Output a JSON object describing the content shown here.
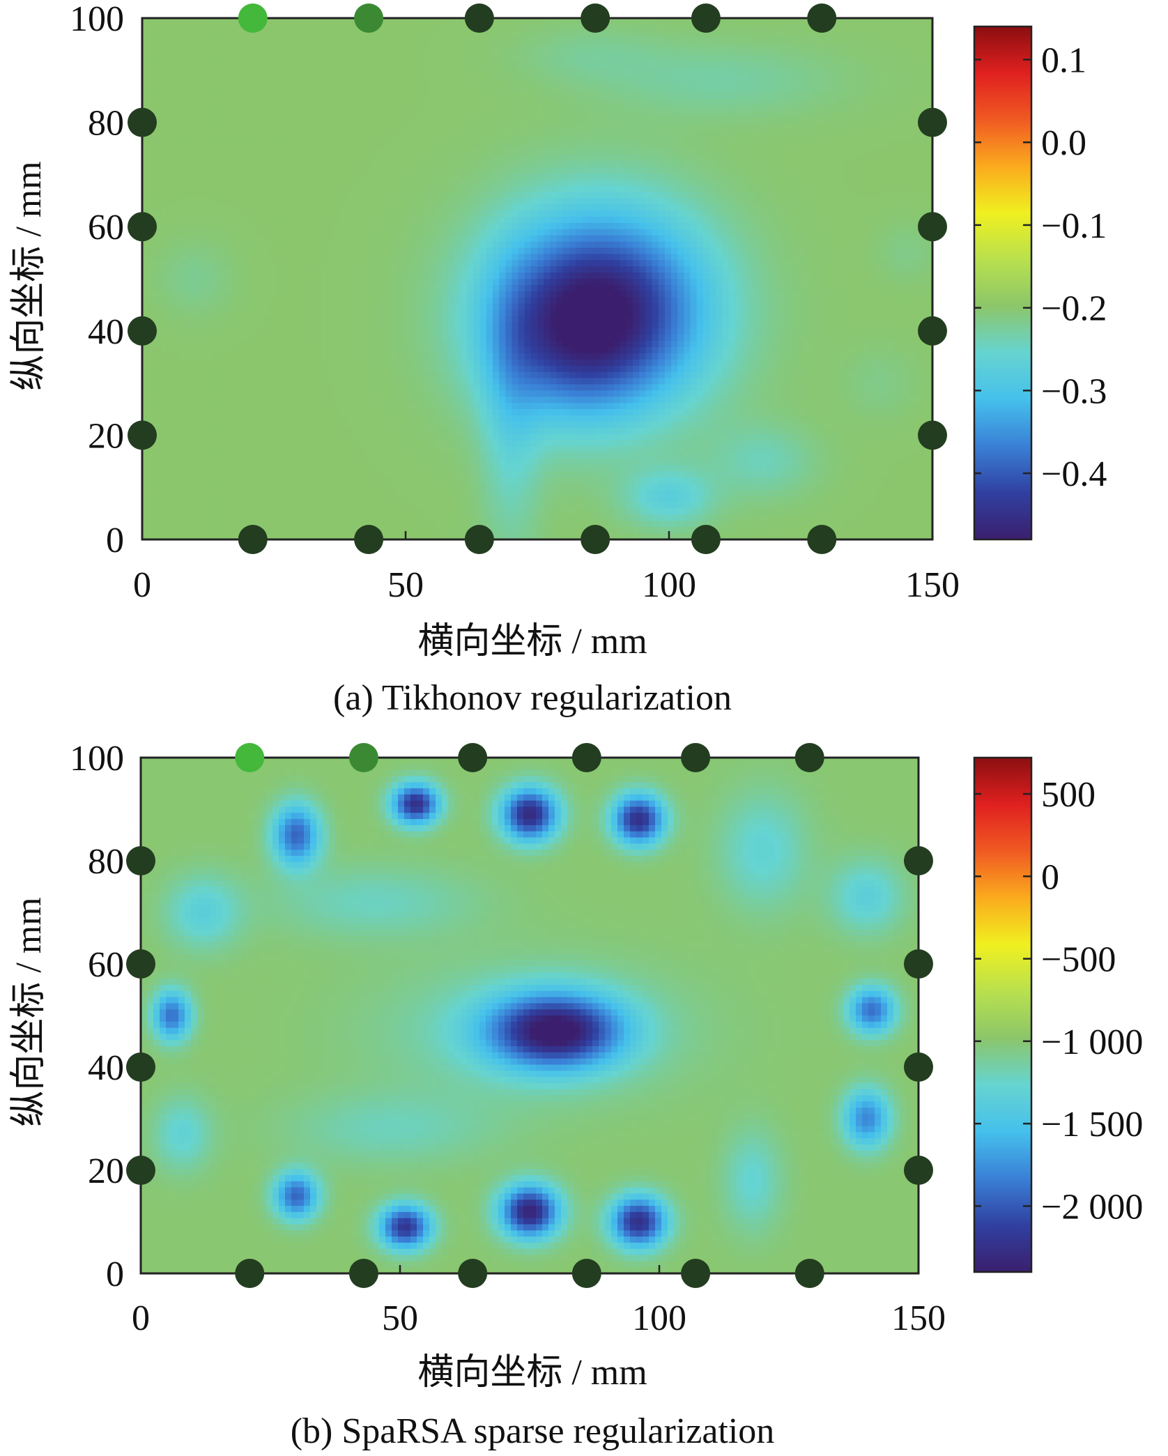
{
  "colormap": [
    "#3b1f6e",
    "#3040a0",
    "#3a80d6",
    "#45c0ec",
    "#66d4d0",
    "#8cc66a",
    "#b8e04e",
    "#f0f020",
    "#fbab1e",
    "#f05a22",
    "#e02020",
    "#8b0e10"
  ],
  "sensor_colors": {
    "default": "#233d20",
    "highlight_1": "#43b83a",
    "highlight_2": "#3b8a33"
  },
  "chart_data": [
    {
      "type": "heatmap",
      "caption": "(a) Tikhonov regularization",
      "xlabel": "横向坐标 / mm",
      "ylabel": "纵向坐标 / mm",
      "xlim": [
        0,
        150
      ],
      "ylim": [
        0,
        100
      ],
      "xticks": [
        0,
        50,
        100,
        150
      ],
      "yticks": [
        0,
        20,
        40,
        60,
        80,
        100
      ],
      "colorbar": {
        "min": -0.48,
        "max": 0.14,
        "ticks": [
          0.1,
          0.0,
          -0.1,
          -0.2,
          -0.3,
          -0.4
        ],
        "labels": [
          "0.1",
          "0.0",
          "−0.1",
          "−0.2",
          "−0.3",
          "−0.4"
        ]
      },
      "background_value": -0.2,
      "blobs": [
        {
          "x": 87,
          "y": 44,
          "sx": 14,
          "sy": 13,
          "amp": -0.28
        },
        {
          "x": 80,
          "y": 36,
          "sx": 10,
          "sy": 10,
          "amp": -0.06
        },
        {
          "x": 70,
          "y": 22,
          "sx": 4,
          "sy": 18,
          "amp": -0.05
        },
        {
          "x": 100,
          "y": 8,
          "sx": 6,
          "sy": 4,
          "amp": -0.07
        },
        {
          "x": 118,
          "y": 15,
          "sx": 7,
          "sy": 5,
          "amp": -0.04
        },
        {
          "x": 110,
          "y": 88,
          "sx": 16,
          "sy": 5,
          "amp": -0.03
        },
        {
          "x": 85,
          "y": 93,
          "sx": 10,
          "sy": 4,
          "amp": -0.02
        },
        {
          "x": 10,
          "y": 50,
          "sx": 5,
          "sy": 5,
          "amp": -0.02
        },
        {
          "x": 140,
          "y": 30,
          "sx": 5,
          "sy": 5,
          "amp": -0.015
        },
        {
          "x": 145,
          "y": 55,
          "sx": 4,
          "sy": 4,
          "amp": -0.015
        }
      ],
      "sensors": {
        "top": [
          {
            "x": 21,
            "y": 100,
            "color": "highlight_1"
          },
          {
            "x": 43,
            "y": 100,
            "color": "highlight_2"
          },
          {
            "x": 64,
            "y": 100
          },
          {
            "x": 86,
            "y": 100
          },
          {
            "x": 107,
            "y": 100
          },
          {
            "x": 129,
            "y": 100
          }
        ],
        "bottom": [
          {
            "x": 21,
            "y": 0
          },
          {
            "x": 43,
            "y": 0
          },
          {
            "x": 64,
            "y": 0
          },
          {
            "x": 86,
            "y": 0
          },
          {
            "x": 107,
            "y": 0
          },
          {
            "x": 129,
            "y": 0
          }
        ],
        "left": [
          {
            "x": 0,
            "y": 20
          },
          {
            "x": 0,
            "y": 40
          },
          {
            "x": 0,
            "y": 60
          },
          {
            "x": 0,
            "y": 80
          }
        ],
        "right": [
          {
            "x": 150,
            "y": 20
          },
          {
            "x": 150,
            "y": 40
          },
          {
            "x": 150,
            "y": 60
          },
          {
            "x": 150,
            "y": 80
          }
        ]
      }
    },
    {
      "type": "heatmap",
      "caption": "(b) SpaRSA sparse regularization",
      "xlabel": "横向坐标 / mm",
      "ylabel": "纵向坐标 / mm",
      "xlim": [
        0,
        150
      ],
      "ylim": [
        0,
        100
      ],
      "xticks": [
        0,
        50,
        100,
        150
      ],
      "yticks": [
        0,
        20,
        40,
        60,
        80,
        100
      ],
      "colorbar": {
        "min": -2400,
        "max": 720,
        "ticks": [
          500,
          0,
          -500,
          -1000,
          -1500,
          -2000
        ],
        "labels": [
          "500",
          "0",
          "−500",
          "−1 000",
          "−1 500",
          "−2 000"
        ]
      },
      "background_value": -1000,
      "blobs": [
        {
          "x": 80,
          "y": 47,
          "sx": 9,
          "sy": 5,
          "amp": -1300
        },
        {
          "x": 75,
          "y": 47,
          "sx": 20,
          "sy": 9,
          "amp": -250
        },
        {
          "x": 53,
          "y": 91,
          "sx": 3.2,
          "sy": 2.8,
          "amp": -1250
        },
        {
          "x": 75,
          "y": 89,
          "sx": 3.8,
          "sy": 3.6,
          "amp": -1300
        },
        {
          "x": 96,
          "y": 88,
          "sx": 3.5,
          "sy": 3.4,
          "amp": -1250
        },
        {
          "x": 30,
          "y": 85,
          "sx": 3.2,
          "sy": 4.2,
          "amp": -950
        },
        {
          "x": 75,
          "y": 12,
          "sx": 4,
          "sy": 3.6,
          "amp": -1350
        },
        {
          "x": 96,
          "y": 10,
          "sx": 3.8,
          "sy": 3.5,
          "amp": -1250
        },
        {
          "x": 51,
          "y": 9,
          "sx": 3.5,
          "sy": 3,
          "amp": -1200
        },
        {
          "x": 30,
          "y": 15,
          "sx": 3,
          "sy": 3.2,
          "amp": -950
        },
        {
          "x": 6,
          "y": 50,
          "sx": 2.6,
          "sy": 3.4,
          "amp": -900
        },
        {
          "x": 141,
          "y": 51,
          "sx": 3.2,
          "sy": 3.2,
          "amp": -900
        },
        {
          "x": 140,
          "y": 30,
          "sx": 3.2,
          "sy": 4,
          "amp": -800
        },
        {
          "x": 12,
          "y": 70,
          "sx": 5,
          "sy": 5,
          "amp": -350
        },
        {
          "x": 140,
          "y": 73,
          "sx": 5,
          "sy": 5,
          "amp": -350
        },
        {
          "x": 8,
          "y": 27,
          "sx": 4,
          "sy": 5,
          "amp": -300
        },
        {
          "x": 120,
          "y": 82,
          "sx": 6,
          "sy": 8,
          "amp": -300
        },
        {
          "x": 118,
          "y": 18,
          "sx": 4,
          "sy": 7,
          "amp": -280
        },
        {
          "x": 45,
          "y": 72,
          "sx": 14,
          "sy": 5,
          "amp": -220
        },
        {
          "x": 48,
          "y": 28,
          "sx": 14,
          "sy": 5,
          "amp": -200
        }
      ],
      "sensors": {
        "top": [
          {
            "x": 21,
            "y": 100,
            "color": "highlight_1"
          },
          {
            "x": 43,
            "y": 100,
            "color": "highlight_2"
          },
          {
            "x": 64,
            "y": 100
          },
          {
            "x": 86,
            "y": 100
          },
          {
            "x": 107,
            "y": 100
          },
          {
            "x": 129,
            "y": 100
          }
        ],
        "bottom": [
          {
            "x": 21,
            "y": 0
          },
          {
            "x": 43,
            "y": 0
          },
          {
            "x": 64,
            "y": 0
          },
          {
            "x": 86,
            "y": 0
          },
          {
            "x": 107,
            "y": 0
          },
          {
            "x": 129,
            "y": 0
          }
        ],
        "left": [
          {
            "x": 0,
            "y": 20
          },
          {
            "x": 0,
            "y": 40
          },
          {
            "x": 0,
            "y": 60
          },
          {
            "x": 0,
            "y": 80
          }
        ],
        "right": [
          {
            "x": 150,
            "y": 20
          },
          {
            "x": 150,
            "y": 40
          },
          {
            "x": 150,
            "y": 60
          },
          {
            "x": 150,
            "y": 80
          }
        ]
      }
    }
  ]
}
